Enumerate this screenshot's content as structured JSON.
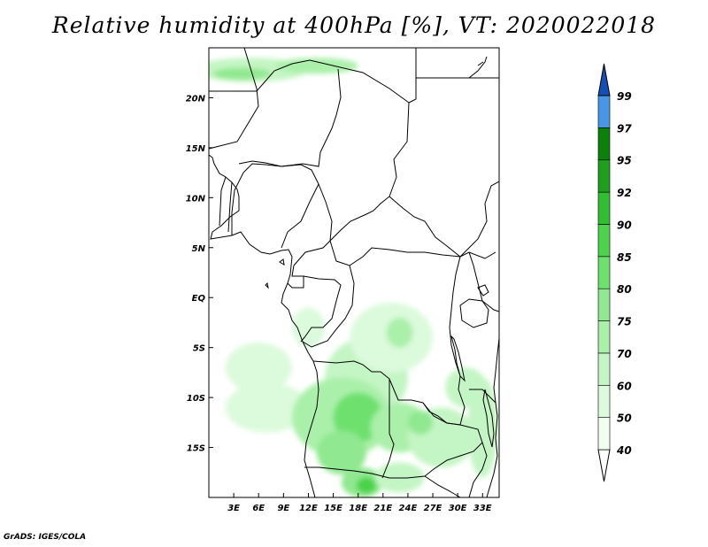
{
  "title": "Relative humidity at 400hPa [%], VT: 2020022018",
  "credit": "GrADS: IGES/COLA",
  "map": {
    "lon_range": [
      0,
      35
    ],
    "lat_range": [
      -20,
      25
    ],
    "lat_ticks": [
      {
        "value": 20,
        "label": "20N"
      },
      {
        "value": 15,
        "label": "15N"
      },
      {
        "value": 10,
        "label": "10N"
      },
      {
        "value": 5,
        "label": "5N"
      },
      {
        "value": 0,
        "label": "EQ"
      },
      {
        "value": -5,
        "label": "5S"
      },
      {
        "value": -10,
        "label": "10S"
      },
      {
        "value": -15,
        "label": "15S"
      }
    ],
    "lon_ticks": [
      {
        "value": 3,
        "label": "3E"
      },
      {
        "value": 6,
        "label": "6E"
      },
      {
        "value": 9,
        "label": "9E"
      },
      {
        "value": 12,
        "label": "12E"
      },
      {
        "value": 15,
        "label": "15E"
      },
      {
        "value": 18,
        "label": "18E"
      },
      {
        "value": 21,
        "label": "21E"
      },
      {
        "value": 24,
        "label": "24E"
      },
      {
        "value": 27,
        "label": "27E"
      },
      {
        "value": 30,
        "label": "30E"
      },
      {
        "value": 33,
        "label": "33E"
      }
    ]
  },
  "colorbar": {
    "levels": [
      {
        "label": "40",
        "color": "#f0fff0"
      },
      {
        "label": "50",
        "color": "#dcfadc"
      },
      {
        "label": "60",
        "color": "#c4f5c4"
      },
      {
        "label": "70",
        "color": "#aaf0aa"
      },
      {
        "label": "75",
        "color": "#90e890"
      },
      {
        "label": "80",
        "color": "#6ee06e"
      },
      {
        "label": "85",
        "color": "#4cd24c"
      },
      {
        "label": "90",
        "color": "#32be32"
      },
      {
        "label": "92",
        "color": "#1ea01e"
      },
      {
        "label": "95",
        "color": "#0a820a"
      },
      {
        "label": "97",
        "color": "#4a96e6"
      },
      {
        "label": "99",
        "color": "#2870d2"
      }
    ],
    "top_color": "#1450b4"
  },
  "humidity_regions": [
    {
      "name": "north-band",
      "level": 2,
      "lon": 5,
      "lat": 22.8,
      "rlon": 7,
      "rlat": 1.2
    },
    {
      "name": "north-band-core",
      "level": 4,
      "lon": 4,
      "lat": 22.4,
      "rlon": 3.5,
      "rlat": 0.6
    },
    {
      "name": "north-band-east",
      "level": 3,
      "lon": 13,
      "lat": 23.2,
      "rlon": 5,
      "rlat": 0.8
    },
    {
      "name": "west-coast",
      "level": 1,
      "lon": 6,
      "lat": -7,
      "rlon": 4,
      "rlat": 2.5
    },
    {
      "name": "atlantic-sw",
      "level": 1,
      "lon": 7,
      "lat": -11,
      "rlon": 5,
      "rlat": 2.5
    },
    {
      "name": "congo-central",
      "level": 2,
      "lon": 19,
      "lat": -8,
      "rlon": 5,
      "rlat": 4
    },
    {
      "name": "congo-ne",
      "level": 1,
      "lon": 22,
      "lat": -4,
      "rlon": 5,
      "rlat": 3.5
    },
    {
      "name": "kasai-blob",
      "level": 3,
      "lon": 23,
      "lat": -3.5,
      "rlon": 1.6,
      "rlat": 1.5
    },
    {
      "name": "angola-broad",
      "level": 3,
      "lon": 16,
      "lat": -12,
      "rlon": 6,
      "rlat": 4
    },
    {
      "name": "angola-core",
      "level": 5,
      "lon": 18,
      "lat": -12,
      "rlon": 3,
      "rlat": 2.5
    },
    {
      "name": "angola-south",
      "level": 4,
      "lon": 16,
      "lat": -15.5,
      "rlon": 3,
      "rlat": 2.2
    },
    {
      "name": "zambia-west",
      "level": 3,
      "lon": 23,
      "lat": -13,
      "rlon": 3.5,
      "rlat": 2.5
    },
    {
      "name": "zambia-east",
      "level": 2,
      "lon": 28,
      "lat": -14,
      "rlon": 4,
      "rlat": 3
    },
    {
      "name": "zambia-core",
      "level": 4,
      "lon": 25.5,
      "lat": -12.5,
      "rlon": 1.5,
      "rlat": 1.2
    },
    {
      "name": "mozambique",
      "level": 2,
      "lon": 33,
      "lat": -13,
      "rlon": 1.8,
      "rlat": 5
    },
    {
      "name": "tanzania-south",
      "level": 2,
      "lon": 31,
      "lat": -9,
      "rlon": 2.5,
      "rlat": 2
    },
    {
      "name": "namibia-north",
      "level": 4,
      "lon": 18.5,
      "lat": -18.5,
      "rlon": 2.5,
      "rlat": 1.5
    },
    {
      "name": "namibia-core",
      "level": 6,
      "lon": 19,
      "lat": -18.8,
      "rlon": 1.2,
      "rlat": 0.8
    },
    {
      "name": "southern-patch",
      "level": 2,
      "lon": 23,
      "lat": -18,
      "rlon": 3,
      "rlat": 1.5
    },
    {
      "name": "gabon-coast",
      "level": 1,
      "lon": 12,
      "lat": -3,
      "rlon": 2,
      "rlat": 2
    }
  ]
}
